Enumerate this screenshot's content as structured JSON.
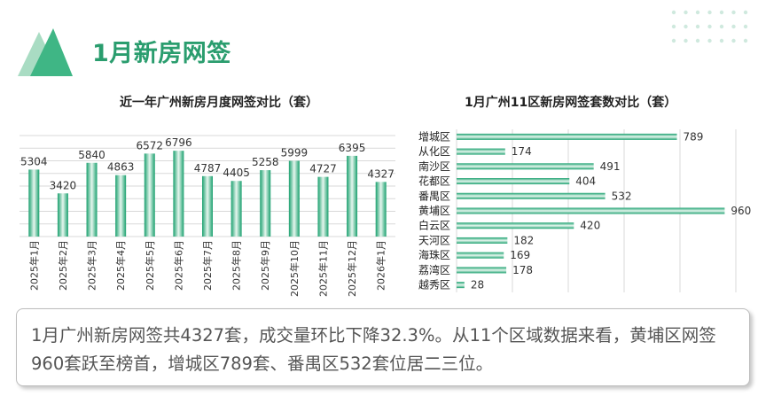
{
  "page": {
    "title": "1月新房网签",
    "summary": "1月广州新房网签共4327套，成交量环比下降32.3%。从11个区域数据来看，黄埔区网签960套跃至榜首，增城区789套、番禺区532套位居二三位。"
  },
  "colors": {
    "accent": "#2a9d6e",
    "bar_dark": "#1aa06e",
    "bar_light": "#e6f6ee",
    "dots": "#cfe9de"
  },
  "chart_data": [
    {
      "type": "bar",
      "title": "近一年广州新房月度网签对比（套）",
      "categories": [
        "2025年1月",
        "2025年2月",
        "2025年3月",
        "2025年4月",
        "2025年5月",
        "2025年6月",
        "2025年7月",
        "2025年8月",
        "2025年9月",
        "2025年10月",
        "2025年11月",
        "2025年12月",
        "2026年1月"
      ],
      "values": [
        5304,
        3420,
        5840,
        4863,
        6572,
        6796,
        4787,
        4405,
        5258,
        5999,
        4727,
        6395,
        4327
      ],
      "ylim": [
        0,
        8000
      ],
      "grid": true
    },
    {
      "type": "bar",
      "orientation": "horizontal",
      "title": "1月广州11区新房网签套数对比（套）",
      "categories": [
        "增城区",
        "从化区",
        "南沙区",
        "花都区",
        "番禺区",
        "黄埔区",
        "白云区",
        "天河区",
        "海珠区",
        "荔湾区",
        "越秀区"
      ],
      "values": [
        789,
        174,
        491,
        404,
        532,
        960,
        420,
        182,
        169,
        178,
        28
      ],
      "xlim": [
        0,
        1000
      ],
      "grid": true
    }
  ]
}
